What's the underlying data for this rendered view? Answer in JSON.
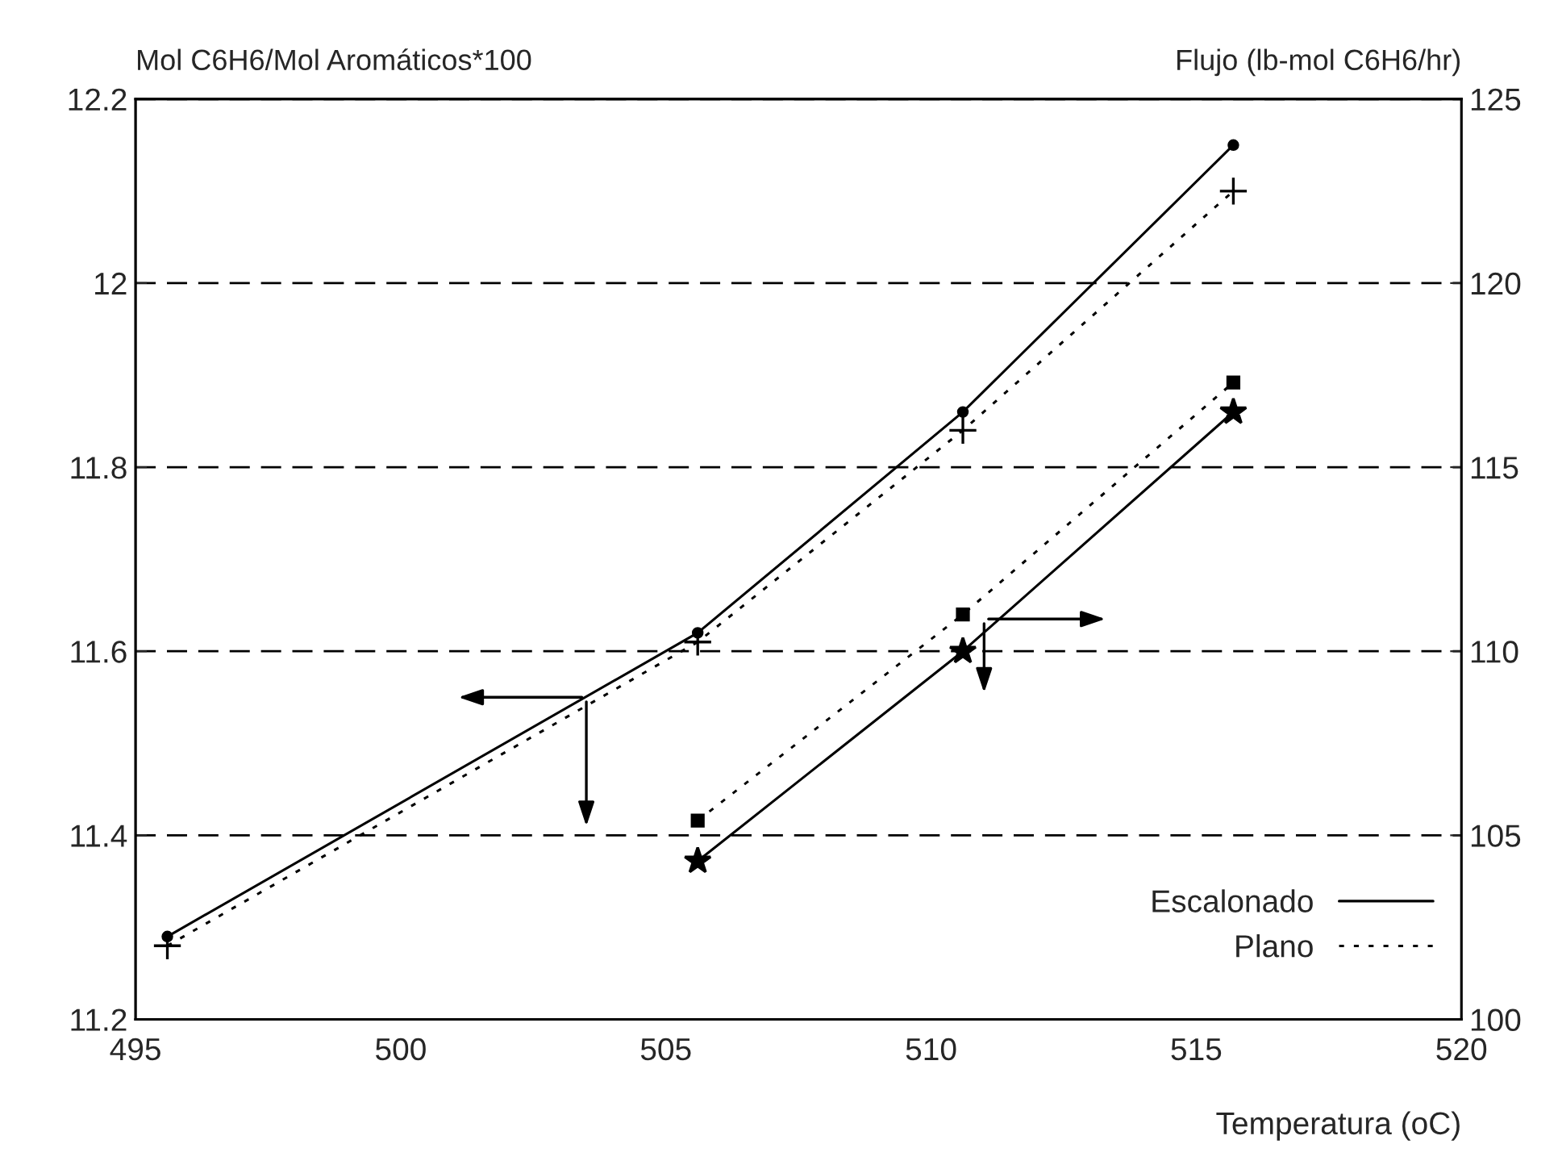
{
  "chart_data": {
    "type": "line",
    "ylabel": "Mol C6H6/Mol Aromáticos*100",
    "y2label": "Flujo (lb-mol C6H6/hr)",
    "xlabel": "Temperatura (oC)",
    "x": [
      495.6,
      505.6,
      510.6,
      515.7
    ],
    "xlim": [
      495,
      520
    ],
    "xticks": [
      495,
      500,
      505,
      510,
      515,
      520
    ],
    "ylim": [
      11.2,
      12.2
    ],
    "yticks": [
      11.2,
      11.4,
      11.6,
      11.8,
      12,
      12.2
    ],
    "y2lim": [
      100,
      125
    ],
    "y2ticks": [
      100,
      105,
      110,
      115,
      120,
      125
    ],
    "grid": "y",
    "legend": "bottom right",
    "series": [
      {
        "name": "Escalonado",
        "color": "#000000",
        "line_style": "solid",
        "marker": "circle",
        "values": [
          11.29,
          11.62,
          11.86,
          12.15
        ]
      },
      {
        "name": "Plano",
        "color": "#000000",
        "line_style": "dotted",
        "marker": "cross",
        "values": [
          11.28,
          11.61,
          11.84,
          12.1
        ]
      },
      {
        "color": "#000000",
        "line_style": "solid",
        "marker": "star",
        "axis": "y2",
        "x": [
          505.6,
          510.6,
          515.7
        ],
        "values": [
          104.3,
          110.0,
          116.5
        ]
      },
      {
        "color": "#000000",
        "line_style": "dotted",
        "marker": "square",
        "axis": "y2",
        "x": [
          505.6,
          510.6,
          515.7
        ],
        "values": [
          105.4,
          111.0,
          117.3
        ]
      }
    ]
  }
}
